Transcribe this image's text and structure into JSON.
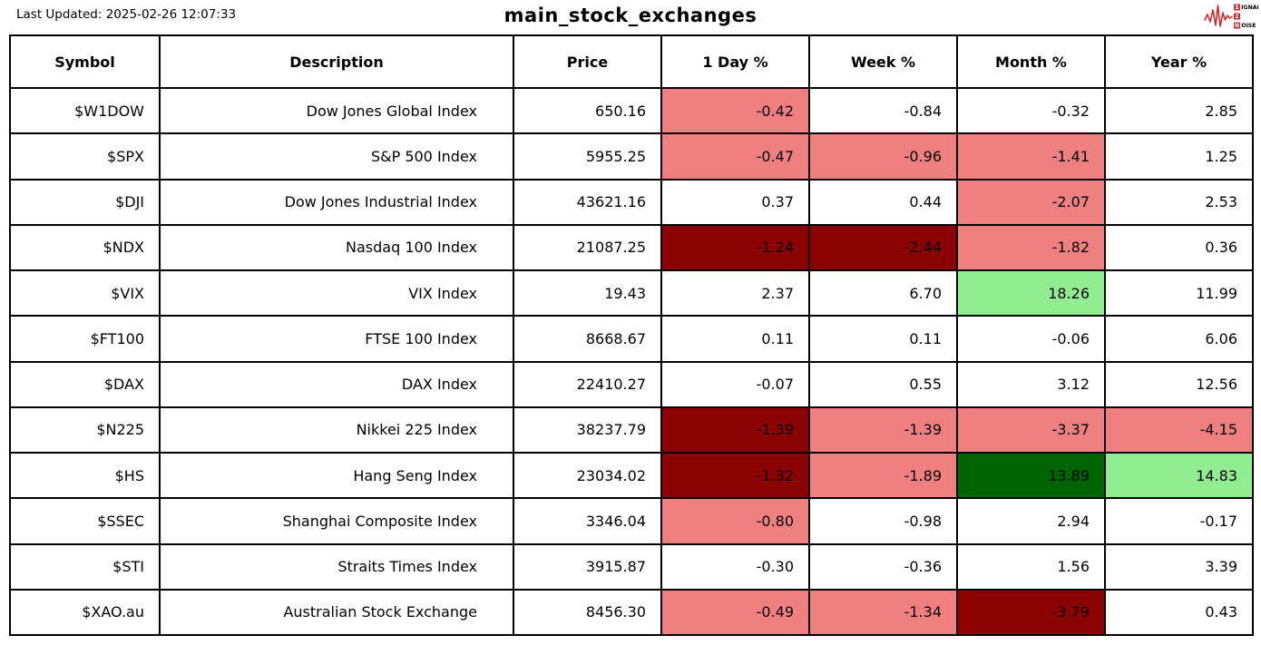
{
  "page": {
    "last_updated": "Last Updated: 2025-02-26 12:07:33",
    "title": "main_stock_exchanges"
  },
  "logo": {
    "words": [
      "SIGNAL",
      "2",
      "NOISE"
    ],
    "color": "#cc2a2a"
  },
  "colors": {
    "white": "#ffffff",
    "light_red": "#f08080",
    "dark_red": "#8b0000",
    "light_green": "#90ee90",
    "dark_green": "#006400",
    "border": "#000000"
  },
  "chart_data": {
    "type": "table",
    "title": "main_stock_exchanges",
    "columns": [
      "Symbol",
      "Description",
      "Price",
      "1 Day %",
      "Week %",
      "Month %",
      "Year %"
    ],
    "rows": [
      {
        "symbol": "$W1DOW",
        "description": "Dow Jones Global Index",
        "price": "650.16",
        "day": "-0.42",
        "week": "-0.84",
        "month": "-0.32",
        "year": "2.85",
        "bg": {
          "day": "light_red",
          "week": "white",
          "month": "white",
          "year": "white"
        }
      },
      {
        "symbol": "$SPX",
        "description": "S&P 500 Index",
        "price": "5955.25",
        "day": "-0.47",
        "week": "-0.96",
        "month": "-1.41",
        "year": "1.25",
        "bg": {
          "day": "light_red",
          "week": "light_red",
          "month": "light_red",
          "year": "white"
        }
      },
      {
        "symbol": "$DJI",
        "description": "Dow Jones Industrial Index",
        "price": "43621.16",
        "day": "0.37",
        "week": "0.44",
        "month": "-2.07",
        "year": "2.53",
        "bg": {
          "day": "white",
          "week": "white",
          "month": "light_red",
          "year": "white"
        }
      },
      {
        "symbol": "$NDX",
        "description": "Nasdaq 100 Index",
        "price": "21087.25",
        "day": "-1.24",
        "week": "-2.44",
        "month": "-1.82",
        "year": "0.36",
        "bg": {
          "day": "dark_red",
          "week": "dark_red",
          "month": "light_red",
          "year": "white"
        }
      },
      {
        "symbol": "$VIX",
        "description": "VIX Index",
        "price": "19.43",
        "day": "2.37",
        "week": "6.70",
        "month": "18.26",
        "year": "11.99",
        "bg": {
          "day": "white",
          "week": "white",
          "month": "light_green",
          "year": "white"
        }
      },
      {
        "symbol": "$FT100",
        "description": "FTSE 100 Index",
        "price": "8668.67",
        "day": "0.11",
        "week": "0.11",
        "month": "-0.06",
        "year": "6.06",
        "bg": {
          "day": "white",
          "week": "white",
          "month": "white",
          "year": "white"
        }
      },
      {
        "symbol": "$DAX",
        "description": "DAX Index",
        "price": "22410.27",
        "day": "-0.07",
        "week": "0.55",
        "month": "3.12",
        "year": "12.56",
        "bg": {
          "day": "white",
          "week": "white",
          "month": "white",
          "year": "white"
        }
      },
      {
        "symbol": "$N225",
        "description": "Nikkei 225 Index",
        "price": "38237.79",
        "day": "-1.39",
        "week": "-1.39",
        "month": "-3.37",
        "year": "-4.15",
        "bg": {
          "day": "dark_red",
          "week": "light_red",
          "month": "light_red",
          "year": "light_red"
        }
      },
      {
        "symbol": "$HS",
        "description": "Hang Seng Index",
        "price": "23034.02",
        "day": "-1.32",
        "week": "-1.89",
        "month": "13.89",
        "year": "14.83",
        "bg": {
          "day": "dark_red",
          "week": "light_red",
          "month": "dark_green",
          "year": "light_green"
        }
      },
      {
        "symbol": "$SSEC",
        "description": "Shanghai Composite Index",
        "price": "3346.04",
        "day": "-0.80",
        "week": "-0.98",
        "month": "2.94",
        "year": "-0.17",
        "bg": {
          "day": "light_red",
          "week": "white",
          "month": "white",
          "year": "white"
        }
      },
      {
        "symbol": "$STI",
        "description": "Straits Times Index",
        "price": "3915.87",
        "day": "-0.30",
        "week": "-0.36",
        "month": "1.56",
        "year": "3.39",
        "bg": {
          "day": "white",
          "week": "white",
          "month": "white",
          "year": "white"
        }
      },
      {
        "symbol": "$XAO.au",
        "description": "Australian Stock Exchange",
        "price": "8456.30",
        "day": "-0.49",
        "week": "-1.34",
        "month": "-3.79",
        "year": "0.43",
        "bg": {
          "day": "light_red",
          "week": "light_red",
          "month": "dark_red",
          "year": "white"
        }
      }
    ]
  }
}
